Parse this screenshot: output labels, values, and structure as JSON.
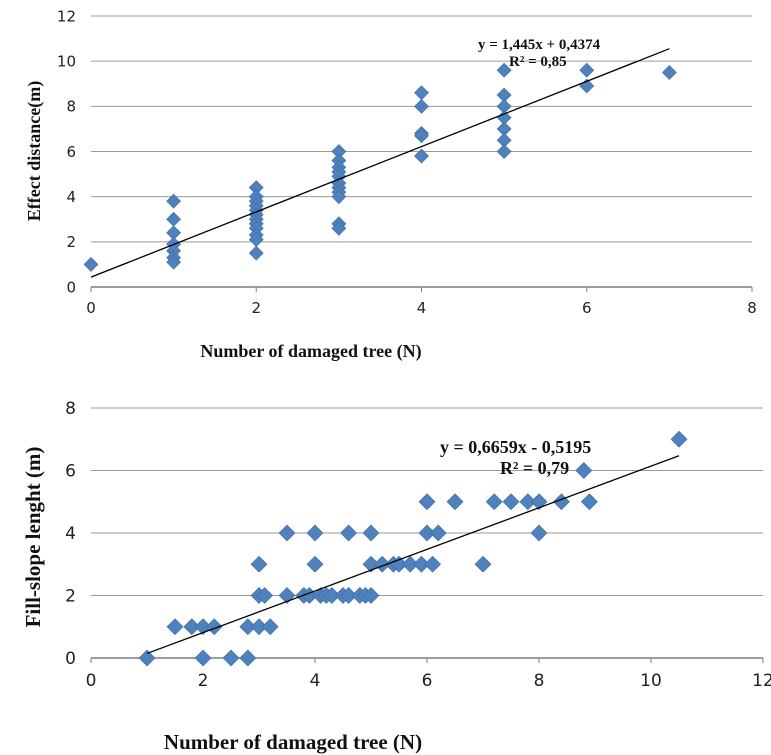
{
  "chart_data": [
    {
      "type": "scatter",
      "xlabel": "Number of damaged tree (N)",
      "ylabel": "Effect distance(m)",
      "xlim": [
        0,
        8
      ],
      "ylim": [
        0,
        12
      ],
      "xticks": [
        "0",
        "2",
        "4",
        "6",
        "8"
      ],
      "yticks": [
        "0",
        "2",
        "4",
        "6",
        "8",
        "10",
        "12"
      ],
      "grid": "horizontal",
      "marker_color": "#4f81bd",
      "trendline": {
        "slope": 1.445,
        "intercept": 0.4374,
        "x_range": [
          0,
          7
        ]
      },
      "equation": "y = 1,445x + 0,4374",
      "r2": "R² = 0,85",
      "points": [
        [
          0,
          1
        ],
        [
          1,
          3.8
        ],
        [
          1,
          3.0
        ],
        [
          1,
          2.4
        ],
        [
          1,
          1.9
        ],
        [
          1,
          1.6
        ],
        [
          1,
          1.3
        ],
        [
          1,
          1.1
        ],
        [
          2,
          4.4
        ],
        [
          2,
          4.0
        ],
        [
          2,
          3.8
        ],
        [
          2,
          3.6
        ],
        [
          2,
          3.4
        ],
        [
          2,
          3.2
        ],
        [
          2,
          3.0
        ],
        [
          2,
          2.8
        ],
        [
          2,
          2.6
        ],
        [
          2,
          2.3
        ],
        [
          2,
          2.1
        ],
        [
          2,
          1.5
        ],
        [
          3,
          6.0
        ],
        [
          3,
          5.6
        ],
        [
          3,
          5.3
        ],
        [
          3,
          5.1
        ],
        [
          3,
          4.9
        ],
        [
          3,
          4.6
        ],
        [
          3,
          4.4
        ],
        [
          3,
          4.2
        ],
        [
          3,
          4.0
        ],
        [
          3,
          2.8
        ],
        [
          3,
          2.6
        ],
        [
          4,
          8.6
        ],
        [
          4,
          8.0
        ],
        [
          4,
          6.8
        ],
        [
          4,
          6.7
        ],
        [
          4,
          5.8
        ],
        [
          5,
          9.6
        ],
        [
          5,
          8.5
        ],
        [
          5,
          8.0
        ],
        [
          5,
          7.5
        ],
        [
          5,
          7.0
        ],
        [
          5,
          6.5
        ],
        [
          5,
          6.0
        ],
        [
          6,
          9.6
        ],
        [
          6,
          8.9
        ],
        [
          7,
          9.5
        ]
      ]
    },
    {
      "type": "scatter",
      "xlabel": "Number of damaged tree (N)",
      "ylabel": "Fill-slope lenght (m)",
      "xlim": [
        0,
        12
      ],
      "ylim": [
        0,
        8
      ],
      "xticks": [
        "0",
        "2",
        "4",
        "6",
        "8",
        "10",
        "12"
      ],
      "yticks": [
        "0",
        "2",
        "4",
        "6",
        "8"
      ],
      "grid": "horizontal",
      "marker_color": "#4f81bd",
      "trendline": {
        "slope": 0.6659,
        "intercept": -0.5195,
        "x_range": [
          1,
          10.5
        ]
      },
      "equation": "y = 0,6659x - 0,5195",
      "r2": "R² = 0,79",
      "points": [
        [
          1,
          0
        ],
        [
          1.5,
          1
        ],
        [
          1.8,
          1
        ],
        [
          2,
          1
        ],
        [
          2.2,
          1
        ],
        [
          2,
          0
        ],
        [
          2.5,
          0
        ],
        [
          2.8,
          0
        ],
        [
          2.8,
          1
        ],
        [
          3,
          3
        ],
        [
          3,
          2
        ],
        [
          3.1,
          2
        ],
        [
          3,
          1
        ],
        [
          3.2,
          1
        ],
        [
          3.5,
          4
        ],
        [
          3.5,
          2
        ],
        [
          3.8,
          2
        ],
        [
          3.9,
          2
        ],
        [
          4,
          4
        ],
        [
          4,
          3
        ],
        [
          4.1,
          2
        ],
        [
          4.2,
          2
        ],
        [
          4.3,
          2
        ],
        [
          4.5,
          2
        ],
        [
          4.6,
          4
        ],
        [
          4.6,
          2
        ],
        [
          4.8,
          2
        ],
        [
          4.9,
          2
        ],
        [
          5.0,
          4
        ],
        [
          5.0,
          3
        ],
        [
          5.0,
          2
        ],
        [
          5.2,
          3
        ],
        [
          5.4,
          3
        ],
        [
          5.5,
          3
        ],
        [
          5.7,
          3
        ],
        [
          5.9,
          3
        ],
        [
          6,
          5
        ],
        [
          6,
          4
        ],
        [
          6.1,
          3
        ],
        [
          6.2,
          4
        ],
        [
          6.5,
          5
        ],
        [
          7,
          3
        ],
        [
          7.2,
          5
        ],
        [
          7.5,
          5
        ],
        [
          7.8,
          5
        ],
        [
          8,
          5
        ],
        [
          8,
          4
        ],
        [
          8.4,
          5
        ],
        [
          8.8,
          6
        ],
        [
          8.9,
          5
        ],
        [
          10.5,
          7
        ]
      ]
    }
  ]
}
